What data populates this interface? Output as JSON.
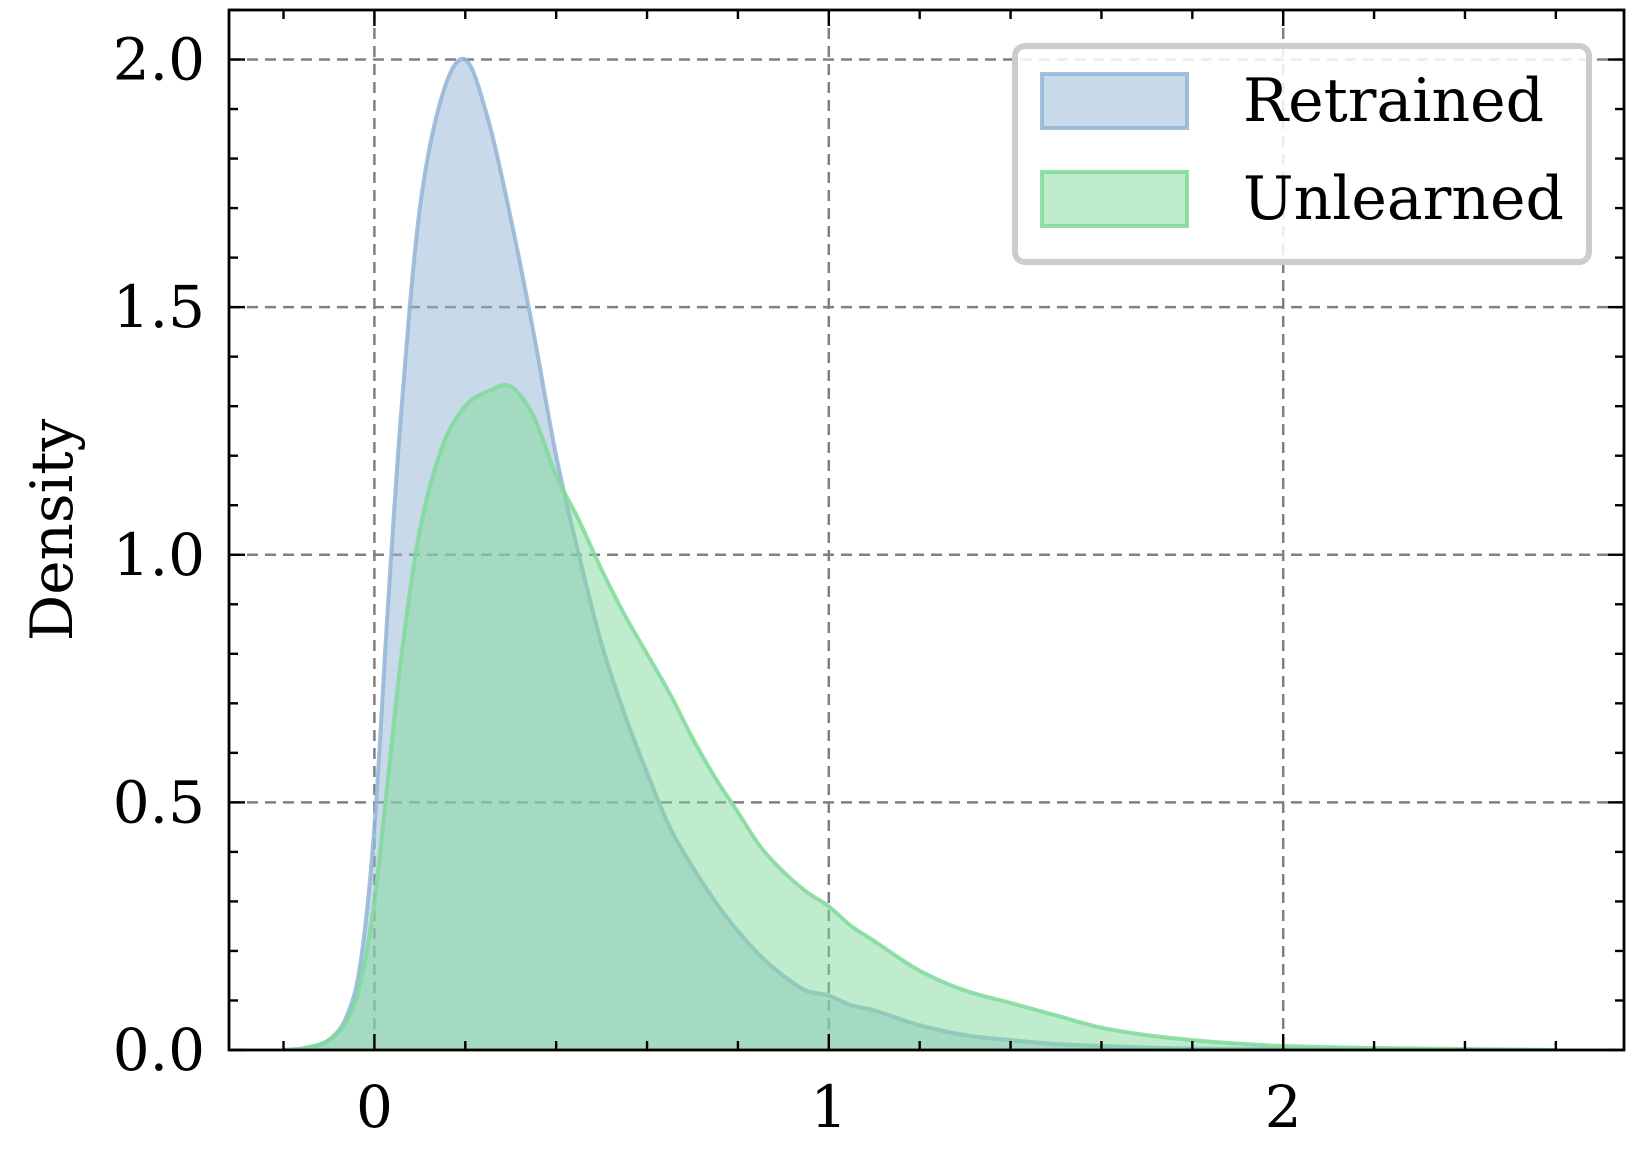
{
  "chart_data": {
    "type": "area",
    "title": "",
    "xlabel": "",
    "ylabel": "Density",
    "xlim": [
      -0.32,
      2.75
    ],
    "ylim": [
      0,
      2.1
    ],
    "x_ticks": [
      0,
      1,
      2
    ],
    "x_tick_labels": [
      "0",
      "1",
      "2"
    ],
    "y_ticks": [
      0.0,
      0.5,
      1.0,
      1.5,
      2.0
    ],
    "y_tick_labels": [
      "0.0",
      "0.5",
      "1.0",
      "1.5",
      "2.0"
    ],
    "grid": true,
    "legend_position": "top-right",
    "series": [
      {
        "name": "Retrained",
        "color": "#92b4d6",
        "x": [
          -0.2,
          -0.15,
          -0.1,
          -0.06,
          -0.03,
          0.0,
          0.03,
          0.06,
          0.1,
          0.15,
          0.2,
          0.25,
          0.3,
          0.35,
          0.4,
          0.45,
          0.5,
          0.55,
          0.6,
          0.65,
          0.7,
          0.75,
          0.8,
          0.85,
          0.9,
          0.95,
          1.0,
          1.05,
          1.1,
          1.2,
          1.3,
          1.4,
          1.5,
          1.6,
          1.7,
          1.8,
          2.0,
          2.2,
          2.4,
          2.6
        ],
        "values": [
          0.0,
          0.003,
          0.02,
          0.07,
          0.18,
          0.45,
          0.9,
          1.3,
          1.7,
          1.93,
          2.0,
          1.88,
          1.68,
          1.45,
          1.2,
          1.0,
          0.82,
          0.68,
          0.56,
          0.45,
          0.37,
          0.3,
          0.24,
          0.19,
          0.15,
          0.12,
          0.11,
          0.09,
          0.08,
          0.05,
          0.03,
          0.02,
          0.012,
          0.008,
          0.005,
          0.003,
          0.002,
          0.001,
          0.0,
          0.0
        ]
      },
      {
        "name": "Unlearned",
        "color": "#7fd99a",
        "x": [
          -0.2,
          -0.15,
          -0.1,
          -0.06,
          -0.03,
          0.0,
          0.03,
          0.06,
          0.1,
          0.15,
          0.2,
          0.25,
          0.3,
          0.35,
          0.4,
          0.45,
          0.5,
          0.55,
          0.6,
          0.65,
          0.7,
          0.75,
          0.8,
          0.85,
          0.9,
          0.95,
          1.0,
          1.05,
          1.1,
          1.2,
          1.3,
          1.4,
          1.5,
          1.6,
          1.7,
          1.8,
          1.9,
          2.0,
          2.2,
          2.4,
          2.6
        ],
        "values": [
          0.0,
          0.005,
          0.02,
          0.06,
          0.14,
          0.3,
          0.55,
          0.8,
          1.05,
          1.22,
          1.3,
          1.33,
          1.34,
          1.28,
          1.16,
          1.07,
          0.97,
          0.88,
          0.8,
          0.72,
          0.63,
          0.55,
          0.48,
          0.41,
          0.36,
          0.32,
          0.29,
          0.25,
          0.22,
          0.16,
          0.12,
          0.095,
          0.07,
          0.045,
          0.03,
          0.02,
          0.013,
          0.008,
          0.004,
          0.002,
          0.0
        ]
      }
    ]
  }
}
